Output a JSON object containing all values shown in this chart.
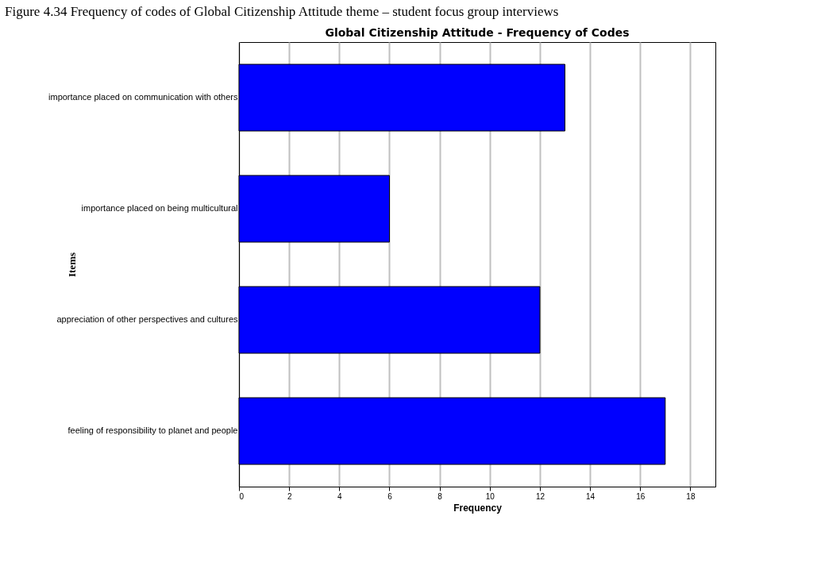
{
  "chart_data": {
    "type": "bar",
    "orientation": "horizontal",
    "title": "Global Citizenship Attitude - Frequency of Codes",
    "annotations": [
      "Figure 4.34 Frequency of codes of Global Citizenship Attitude theme – student focus group interviews"
    ],
    "categories": [
      "importance placed on communication with others",
      "importance placed on being multicultural",
      "appreciation of other perspectives and cultures",
      "feeling of responsibility to planet and people"
    ],
    "values": [
      13,
      6,
      12,
      17
    ],
    "color": "#0000ff",
    "xlabel": "Frequency",
    "ylabel": "Items",
    "xlim": [
      0,
      19
    ],
    "xticks": [
      0,
      2,
      4,
      6,
      8,
      10,
      12,
      14,
      16,
      18
    ],
    "grid": "x"
  }
}
